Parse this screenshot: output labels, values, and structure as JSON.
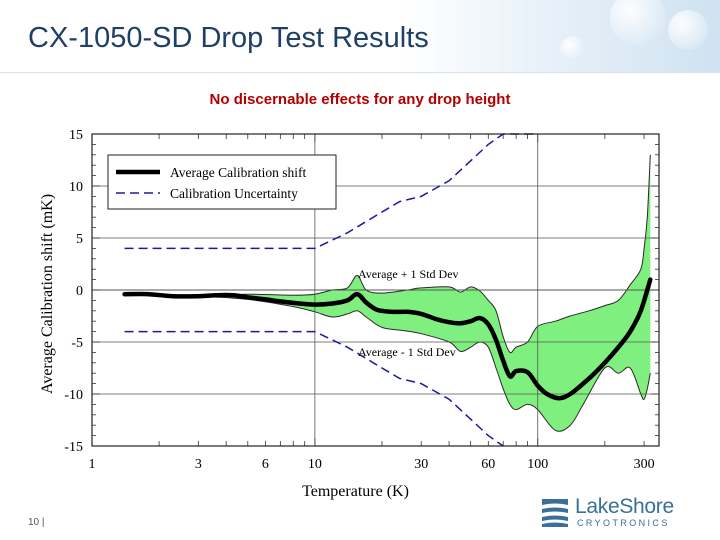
{
  "slide": {
    "title": "CX-1050-SD Drop Test Results",
    "subtitle": "No discernable effects for any drop height",
    "page_number": "10 |"
  },
  "logo": {
    "name": "LakeShore",
    "subtitle": "CRYOTRONICS"
  },
  "chart_data": {
    "type": "line",
    "xlabel": "Temperature (K)",
    "ylabel": "Average Calibration shift (mK)",
    "x_scale": "log",
    "xlim": [
      1,
      350
    ],
    "ylim": [
      -15,
      15
    ],
    "x_ticks": [
      1,
      3,
      6,
      10,
      30,
      60,
      100,
      300
    ],
    "y_ticks": [
      15,
      10,
      5,
      0,
      -5,
      -10,
      -15
    ],
    "grid": true,
    "legend": {
      "position": "top-left",
      "entries": [
        "Average Calibration shift",
        "Calibration Uncertainty"
      ]
    },
    "annotations": [
      "Average + 1 Std Dev",
      "Average - 1 Std Dev"
    ],
    "colors": {
      "average": "#000000",
      "uncertainty": "#1a1aa0",
      "band": "#7ff07f"
    },
    "series": [
      {
        "name": "Average Calibration shift",
        "x": [
          1.4,
          1.8,
          2.3,
          3.0,
          3.6,
          4.3,
          5.0,
          6.0,
          7.0,
          8.5,
          10.0,
          12.0,
          14.0,
          15.5,
          17.0,
          19.0,
          22.0,
          26.0,
          30.0,
          35.0,
          40.0,
          45.0,
          50.0,
          55.0,
          60.0,
          65.0,
          70.0,
          75.0,
          80.0,
          90.0,
          100.0,
          110.0,
          125.0,
          140.0,
          160.0,
          180.0,
          200.0,
          230.0,
          260.0,
          290.0,
          320.0
        ],
        "y": [
          -0.4,
          -0.4,
          -0.6,
          -0.6,
          -0.5,
          -0.5,
          -0.7,
          -0.9,
          -1.1,
          -1.3,
          -1.4,
          -1.3,
          -1.0,
          -0.4,
          -1.2,
          -1.9,
          -2.1,
          -2.1,
          -2.3,
          -2.8,
          -3.1,
          -3.2,
          -3.0,
          -2.7,
          -3.3,
          -4.8,
          -6.8,
          -8.3,
          -7.8,
          -7.9,
          -9.2,
          -10.0,
          -10.4,
          -10.0,
          -9.0,
          -8.0,
          -7.0,
          -5.5,
          -4.0,
          -2.0,
          1.0
        ]
      },
      {
        "name": "Average + 1 Std Dev",
        "x": [
          1.4,
          3.0,
          5.0,
          8.0,
          10.0,
          12.0,
          14.0,
          15.5,
          17.0,
          20.0,
          26.0,
          30.0,
          40.0,
          45.0,
          50.0,
          55.0,
          60.0,
          65.0,
          70.0,
          75.0,
          80.0,
          90.0,
          100.0,
          120.0,
          140.0,
          170.0,
          200.0,
          230.0,
          260.0,
          290.0,
          300.0,
          310.0,
          320.0
        ],
        "y": [
          -0.4,
          -0.5,
          -0.4,
          -0.5,
          -0.4,
          0.0,
          0.2,
          1.4,
          0.0,
          -0.3,
          0.0,
          0.2,
          0.3,
          -0.2,
          0.3,
          -0.1,
          -1.0,
          -2.0,
          -4.5,
          -6.0,
          -5.5,
          -5.0,
          -3.5,
          -3.0,
          -2.5,
          -2.0,
          -1.5,
          -1.0,
          0.5,
          2.0,
          4.0,
          7.0,
          13.0
        ]
      },
      {
        "name": "Average - 1 Std Dev",
        "x": [
          1.4,
          3.0,
          5.0,
          8.0,
          10.0,
          12.0,
          14.0,
          15.5,
          17.0,
          20.0,
          25.0,
          30.0,
          40.0,
          45.0,
          50.0,
          55.0,
          60.0,
          65.0,
          70.0,
          75.0,
          80.0,
          90.0,
          100.0,
          120.0,
          140.0,
          160.0,
          200.0,
          230.0,
          260.0,
          290.0,
          300.0,
          310.0,
          320.0
        ],
        "y": [
          -0.4,
          -0.6,
          -0.9,
          -1.6,
          -2.1,
          -2.6,
          -2.3,
          -2.0,
          -2.6,
          -3.6,
          -3.9,
          -4.2,
          -5.0,
          -5.9,
          -5.5,
          -5.0,
          -5.5,
          -7.5,
          -9.5,
          -11.0,
          -11.5,
          -11.0,
          -11.5,
          -13.5,
          -13.0,
          -11.0,
          -7.5,
          -8.0,
          -7.5,
          -10.0,
          -10.5,
          -9.5,
          -8.0
        ]
      },
      {
        "name": "Calibration Uncertainty",
        "x": [
          1.4,
          10.0,
          14.0,
          20.0,
          24.0,
          30.0,
          40.0,
          60.0,
          70.0,
          100.0
        ],
        "y": [
          4.0,
          4.0,
          5.5,
          7.5,
          8.5,
          9.0,
          10.5,
          14.0,
          15.0,
          15.2
        ]
      },
      {
        "name": "Calibration Uncertainty (lower)",
        "x": [
          1.4,
          10.0,
          14.0,
          20.0,
          24.0,
          30.0,
          40.0,
          60.0,
          70.0
        ],
        "y": [
          -4.0,
          -4.0,
          -5.5,
          -7.5,
          -8.5,
          -9.0,
          -10.5,
          -14.0,
          -15.2
        ]
      }
    ]
  }
}
